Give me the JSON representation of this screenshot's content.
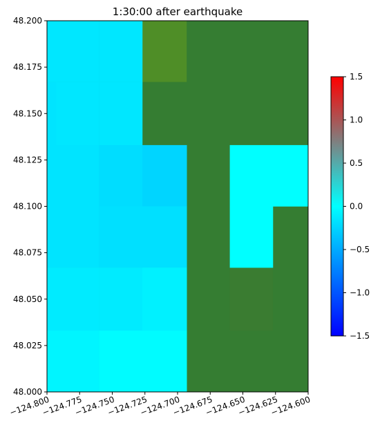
{
  "chart_data": {
    "type": "heatmap",
    "title": "1:30:00 after earthquake",
    "xlabel": "",
    "ylabel": "",
    "xlim": [
      -124.8,
      -124.6
    ],
    "ylim": [
      48.0,
      48.2
    ],
    "grid": false,
    "x_ticks": [
      -124.8,
      -124.775,
      -124.75,
      -124.725,
      -124.7,
      -124.675,
      -124.65,
      -124.625,
      -124.6
    ],
    "x_tick_labels": [
      "−124.800",
      "−124.775",
      "−124.750",
      "−124.725",
      "−124.700",
      "−124.675",
      "−124.650",
      "−124.625",
      "−124.600"
    ],
    "y_ticks": [
      48.0,
      48.025,
      48.05,
      48.075,
      48.1,
      48.125,
      48.15,
      48.175,
      48.2
    ],
    "y_tick_labels": [
      "48.000",
      "48.025",
      "48.050",
      "48.075",
      "48.100",
      "48.125",
      "48.150",
      "48.175",
      "48.200"
    ],
    "cells": [
      {
        "x0": -124.8,
        "x1": -124.793,
        "y0": 48.167,
        "y1": 48.2,
        "value": -0.14
      },
      {
        "x0": -124.793,
        "x1": -124.76,
        "y0": 48.167,
        "y1": 48.2,
        "value": -0.14
      },
      {
        "x0": -124.76,
        "x1": -124.727,
        "y0": 48.167,
        "y1": 48.2,
        "value": -0.14
      },
      {
        "x0": -124.8,
        "x1": -124.793,
        "y0": 48.133,
        "y1": 48.167,
        "value": -0.16
      },
      {
        "x0": -124.793,
        "x1": -124.76,
        "y0": 48.133,
        "y1": 48.167,
        "value": -0.14
      },
      {
        "x0": -124.76,
        "x1": -124.727,
        "y0": 48.133,
        "y1": 48.167,
        "value": -0.14
      },
      {
        "x0": -124.8,
        "x1": -124.793,
        "y0": 48.1,
        "y1": 48.133,
        "value": -0.16
      },
      {
        "x0": -124.793,
        "x1": -124.76,
        "y0": 48.1,
        "y1": 48.133,
        "value": -0.16
      },
      {
        "x0": -124.76,
        "x1": -124.727,
        "y0": 48.1,
        "y1": 48.133,
        "value": -0.2
      },
      {
        "x0": -124.727,
        "x1": -124.693,
        "y0": 48.1,
        "y1": 48.133,
        "value": -0.25
      },
      {
        "x0": -124.627,
        "x1": -124.6,
        "y0": 48.1,
        "y1": 48.133,
        "value": 0.0
      },
      {
        "x0": -124.66,
        "x1": -124.627,
        "y0": 48.1,
        "y1": 48.133,
        "value": 0.0
      },
      {
        "x0": -124.8,
        "x1": -124.793,
        "y0": 48.067,
        "y1": 48.1,
        "value": -0.16
      },
      {
        "x0": -124.793,
        "x1": -124.76,
        "y0": 48.067,
        "y1": 48.1,
        "value": -0.16
      },
      {
        "x0": -124.76,
        "x1": -124.727,
        "y0": 48.067,
        "y1": 48.1,
        "value": -0.18
      },
      {
        "x0": -124.727,
        "x1": -124.693,
        "y0": 48.067,
        "y1": 48.1,
        "value": -0.18
      },
      {
        "x0": -124.66,
        "x1": -124.627,
        "y0": 48.067,
        "y1": 48.1,
        "value": 0.0
      },
      {
        "x0": -124.8,
        "x1": -124.793,
        "y0": 48.033,
        "y1": 48.067,
        "value": -0.12
      },
      {
        "x0": -124.793,
        "x1": -124.76,
        "y0": 48.033,
        "y1": 48.067,
        "value": -0.12
      },
      {
        "x0": -124.76,
        "x1": -124.727,
        "y0": 48.033,
        "y1": 48.067,
        "value": -0.12
      },
      {
        "x0": -124.727,
        "x1": -124.693,
        "y0": 48.033,
        "y1": 48.067,
        "value": -0.08
      },
      {
        "x0": -124.8,
        "x1": -124.793,
        "y0": 48.0,
        "y1": 48.033,
        "value": -0.06
      },
      {
        "x0": -124.793,
        "x1": -124.76,
        "y0": 48.0,
        "y1": 48.033,
        "value": -0.06
      },
      {
        "x0": -124.76,
        "x1": -124.727,
        "y0": 48.0,
        "y1": 48.033,
        "value": -0.02
      },
      {
        "x0": -124.727,
        "x1": -124.693,
        "y0": 48.0,
        "y1": 48.033,
        "value": -0.02
      }
    ],
    "land_cells": [
      {
        "x0": -124.727,
        "x1": -124.693,
        "y0": 48.167,
        "y1": 48.2,
        "color": "#4f8e27"
      },
      {
        "x0": -124.66,
        "x1": -124.627,
        "y0": 48.033,
        "y1": 48.067,
        "color": "#3a7c31"
      }
    ],
    "colorbar": {
      "min": -1.5,
      "max": 1.5,
      "ticks": [
        -1.5,
        -1.0,
        -0.5,
        0.0,
        0.5,
        1.0,
        1.5
      ],
      "tick_labels": [
        "−1.5",
        "−1.0",
        "−0.5",
        "0.0",
        "0.5",
        "1.0",
        "1.5"
      ],
      "stops": [
        {
          "value": -1.5,
          "color": "#0000ff"
        },
        {
          "value": 0.0,
          "color": "#00ffff"
        },
        {
          "value": 1.5,
          "color": "#ff0000"
        }
      ]
    },
    "colors": {
      "land": "#357d32",
      "axis": "#000000",
      "background": "#ffffff"
    }
  }
}
